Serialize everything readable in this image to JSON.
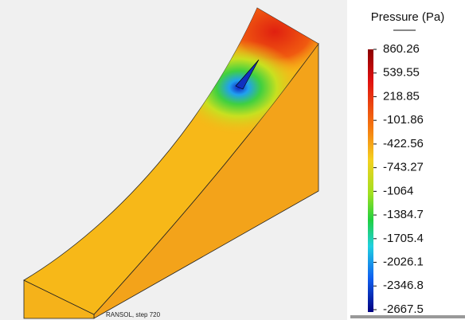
{
  "legend": {
    "title": "Pressure (Pa)",
    "ticks": [
      860.26,
      539.55,
      218.85,
      -101.86,
      -422.56,
      -743.27,
      -1064,
      -1384.7,
      -1705.4,
      -2026.1,
      -2346.8,
      -2667.5
    ]
  },
  "caption": "RANSOL, step 720"
}
